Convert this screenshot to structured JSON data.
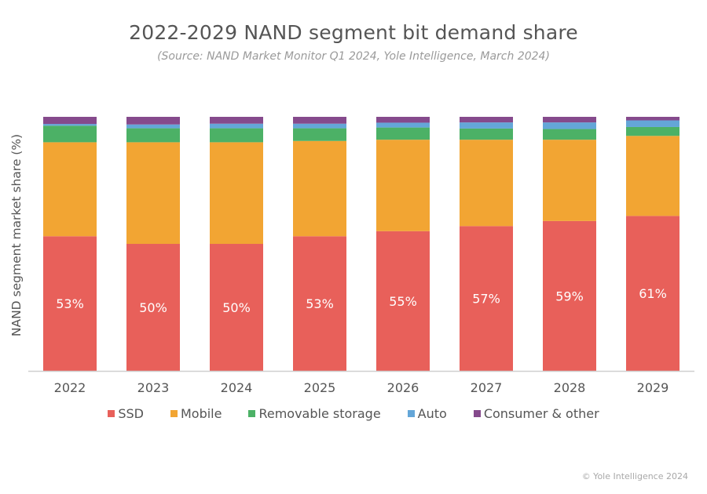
{
  "chart_data": {
    "type": "bar",
    "stacked": true,
    "title": "2022-2029 NAND segment bit demand share",
    "subtitle": "(Source: NAND Market Monitor Q1 2024, Yole Intelligence, March 2024)",
    "xlabel": "",
    "ylabel": "NAND segment market share (%)",
    "ylim": [
      0,
      100
    ],
    "grid": false,
    "legend_position": "bottom",
    "categories": [
      "2022",
      "2023",
      "2024",
      "2025",
      "2026",
      "2027",
      "2028",
      "2029"
    ],
    "series": [
      {
        "name": "SSD",
        "color": "#e8605a",
        "values": [
          53,
          50,
          50,
          53,
          55,
          57,
          59,
          61
        ]
      },
      {
        "name": "Mobile",
        "color": "#f2a533",
        "values": [
          37,
          40,
          40,
          37.5,
          36,
          34,
          32,
          31.5
        ]
      },
      {
        "name": "Removable storage",
        "color": "#4cb166",
        "values": [
          6.5,
          5.5,
          5.5,
          5,
          4.8,
          4.4,
          4.2,
          3.5
        ]
      },
      {
        "name": "Auto",
        "color": "#64a6d8",
        "values": [
          0.7,
          1.5,
          1.8,
          1.8,
          1.9,
          2.4,
          2.6,
          2.6
        ]
      },
      {
        "name": "Consumer & other",
        "color": "#854a8c",
        "values": [
          2.8,
          3,
          2.7,
          2.7,
          2.3,
          2.2,
          2.2,
          1.4
        ]
      }
    ],
    "data_labels": {
      "series": "SSD",
      "labels": [
        "53%",
        "50%",
        "50%",
        "53%",
        "55%",
        "57%",
        "59%",
        "61%"
      ]
    }
  },
  "footer": {
    "copyright": "© Yole Intelligence 2024"
  }
}
